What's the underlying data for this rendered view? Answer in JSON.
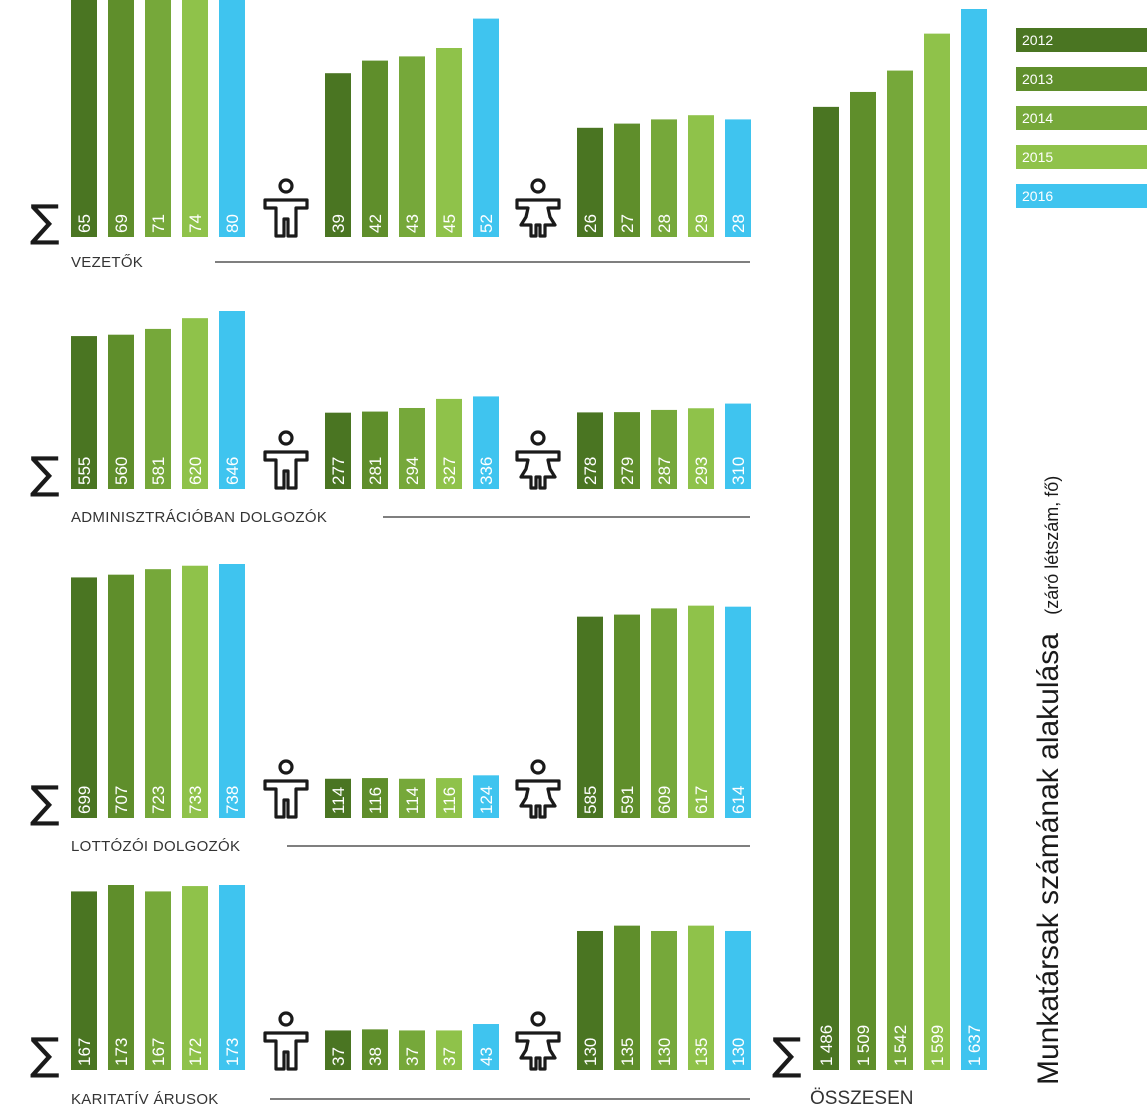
{
  "chart_data": {
    "type": "bar",
    "title": "Munkatársak számának alakulása",
    "subtitle": "(záró létszám, fő)",
    "years": [
      "2012",
      "2013",
      "2014",
      "2015",
      "2016"
    ],
    "colors": [
      "#4a7522",
      "#5f8e2b",
      "#76a83a",
      "#8fc24a",
      "#3fc4ef"
    ],
    "sum_symbol": "∑",
    "legend_placement": "top-right",
    "sections": [
      {
        "name": "VEZETŐK",
        "total": [
          65,
          69,
          71,
          74,
          80
        ],
        "men": [
          39,
          42,
          43,
          45,
          52
        ],
        "women": [
          26,
          27,
          28,
          29,
          28
        ]
      },
      {
        "name": "ADMINISZTRÁCIÓBAN DOLGOZÓK",
        "total": [
          555,
          560,
          581,
          620,
          646
        ],
        "men": [
          277,
          281,
          294,
          327,
          336
        ],
        "women": [
          278,
          279,
          287,
          293,
          310
        ]
      },
      {
        "name": "LOTTÓZÓI DOLGOZÓK",
        "total": [
          699,
          707,
          723,
          733,
          738
        ],
        "men": [
          114,
          116,
          114,
          116,
          124
        ],
        "women": [
          585,
          591,
          609,
          617,
          614
        ]
      },
      {
        "name": "KARITATÍV ÁRUSOK",
        "total": [
          167,
          173,
          167,
          172,
          173
        ],
        "men": [
          37,
          38,
          37,
          37,
          43
        ],
        "women": [
          130,
          135,
          130,
          135,
          130
        ]
      }
    ],
    "overall": {
      "name": "ÖSSZESEN",
      "total": [
        1486,
        1509,
        1542,
        1599,
        1637
      ]
    }
  }
}
